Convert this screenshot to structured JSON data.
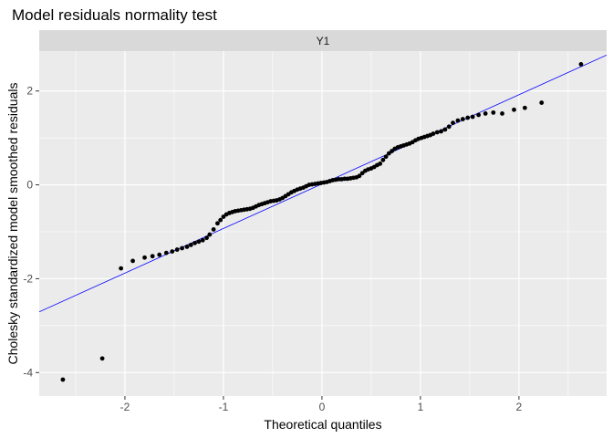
{
  "chart_data": {
    "type": "scatter",
    "title": "Model residuals normality test",
    "facet_label": "Y1",
    "xlabel": "Theoretical quantiles",
    "ylabel": "Cholesky standardized model smoothed residuals",
    "xlim": [
      -2.87,
      2.89
    ],
    "ylim": [
      -4.5,
      2.85
    ],
    "x_ticks": [
      -2,
      -1,
      0,
      1,
      2
    ],
    "y_ticks": [
      -4,
      -2,
      0,
      2
    ],
    "grid": true,
    "colors": {
      "panel": "#ebebeb",
      "strip": "#d9d9d9",
      "grid": "#ffffff",
      "points": "#000000",
      "reference_line": "#0000ff"
    },
    "reference_line": {
      "intercept": 0.02,
      "slope": 0.95
    },
    "points": {
      "x": [
        -2.63,
        -2.23,
        -2.04,
        -1.92,
        -1.8,
        -1.72,
        -1.65,
        -1.58,
        -1.52,
        -1.47,
        -1.42,
        -1.37,
        -1.33,
        -1.29,
        -1.25,
        -1.21,
        -1.17,
        -1.14,
        -1.1,
        -1.06,
        -1.03,
        -1.0,
        -0.97,
        -0.94,
        -0.91,
        -0.88,
        -0.85,
        -0.82,
        -0.79,
        -0.76,
        -0.73,
        -0.7,
        -0.67,
        -0.64,
        -0.61,
        -0.58,
        -0.55,
        -0.52,
        -0.49,
        -0.46,
        -0.43,
        -0.4,
        -0.37,
        -0.34,
        -0.31,
        -0.28,
        -0.25,
        -0.22,
        -0.19,
        -0.16,
        -0.13,
        -0.1,
        -0.07,
        -0.04,
        -0.01,
        0.02,
        0.05,
        0.08,
        0.11,
        0.14,
        0.17,
        0.2,
        0.23,
        0.26,
        0.29,
        0.32,
        0.35,
        0.38,
        0.41,
        0.44,
        0.47,
        0.5,
        0.53,
        0.56,
        0.59,
        0.62,
        0.65,
        0.68,
        0.71,
        0.74,
        0.77,
        0.8,
        0.83,
        0.86,
        0.89,
        0.92,
        0.95,
        0.98,
        1.01,
        1.04,
        1.07,
        1.1,
        1.13,
        1.17,
        1.21,
        1.25,
        1.29,
        1.33,
        1.38,
        1.43,
        1.48,
        1.53,
        1.59,
        1.66,
        1.74,
        1.83,
        1.95,
        2.06,
        2.23,
        2.63
      ],
      "y": [
        -4.15,
        -3.7,
        -1.78,
        -1.62,
        -1.55,
        -1.52,
        -1.49,
        -1.45,
        -1.42,
        -1.38,
        -1.35,
        -1.32,
        -1.28,
        -1.24,
        -1.21,
        -1.18,
        -1.13,
        -1.06,
        -0.95,
        -0.82,
        -0.75,
        -0.68,
        -0.63,
        -0.6,
        -0.58,
        -0.56,
        -0.55,
        -0.54,
        -0.53,
        -0.52,
        -0.51,
        -0.49,
        -0.46,
        -0.43,
        -0.41,
        -0.39,
        -0.37,
        -0.35,
        -0.34,
        -0.33,
        -0.31,
        -0.28,
        -0.24,
        -0.2,
        -0.16,
        -0.13,
        -0.1,
        -0.08,
        -0.06,
        -0.03,
        0.0,
        0.01,
        0.02,
        0.03,
        0.04,
        0.05,
        0.06,
        0.08,
        0.1,
        0.11,
        0.12,
        0.12,
        0.13,
        0.13,
        0.14,
        0.15,
        0.16,
        0.19,
        0.25,
        0.3,
        0.33,
        0.35,
        0.38,
        0.42,
        0.45,
        0.53,
        0.6,
        0.67,
        0.72,
        0.77,
        0.8,
        0.82,
        0.84,
        0.86,
        0.88,
        0.91,
        0.95,
        0.98,
        1.0,
        1.02,
        1.04,
        1.06,
        1.09,
        1.12,
        1.14,
        1.18,
        1.24,
        1.32,
        1.37,
        1.4,
        1.43,
        1.45,
        1.49,
        1.52,
        1.54,
        1.52,
        1.6,
        1.64,
        1.75,
        2.57
      ]
    }
  }
}
